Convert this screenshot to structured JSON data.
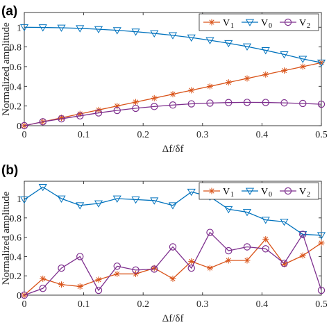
{
  "chart_data": [
    {
      "type": "line",
      "panel_label": "(a)",
      "xlabel": "Δf/δf",
      "ylabel": "Normalized amplitude",
      "xlim": [
        0,
        0.5
      ],
      "ylim": [
        0,
        1.15
      ],
      "xticks": [
        "0",
        "0.1",
        "0.2",
        "0.3",
        "0.4",
        "0.5"
      ],
      "yticks": [
        "0",
        "0.2",
        "0.4",
        "0.6",
        "0.8",
        "1"
      ],
      "grid": true,
      "legend_position": "top-right",
      "x": [
        0,
        0.03125,
        0.0625,
        0.09375,
        0.125,
        0.15625,
        0.1875,
        0.21875,
        0.25,
        0.28125,
        0.3125,
        0.34375,
        0.375,
        0.40625,
        0.4375,
        0.46875,
        0.5
      ],
      "series": [
        {
          "name": "V",
          "subscript": "1",
          "color": "#d95319",
          "marker": "asterisk",
          "values": [
            0,
            0.04,
            0.08,
            0.12,
            0.16,
            0.2,
            0.24,
            0.28,
            0.32,
            0.36,
            0.4,
            0.44,
            0.48,
            0.52,
            0.56,
            0.6,
            0.64
          ]
        },
        {
          "name": "V",
          "subscript": "0",
          "color": "#0072bd",
          "marker": "triangle-down",
          "values": [
            1,
            0.998,
            0.995,
            0.989,
            0.98,
            0.969,
            0.955,
            0.938,
            0.918,
            0.895,
            0.868,
            0.838,
            0.804,
            0.766,
            0.724,
            0.678,
            0.64
          ]
        },
        {
          "name": "V",
          "subscript": "2",
          "color": "#7e2f8e",
          "marker": "circle",
          "values": [
            0,
            0.04,
            0.07,
            0.1,
            0.13,
            0.155,
            0.177,
            0.195,
            0.21,
            0.222,
            0.23,
            0.235,
            0.237,
            0.236,
            0.232,
            0.226,
            0.218
          ]
        }
      ]
    },
    {
      "type": "line",
      "panel_label": "(b)",
      "xlabel": "Δf/δf",
      "ylabel": "Normalized amplitude",
      "xlim": [
        0,
        0.5
      ],
      "ylim": [
        0,
        1.18
      ],
      "xticks": [
        "0",
        "0.1",
        "0.2",
        "0.3",
        "0.4",
        "0.5"
      ],
      "yticks": [
        "0",
        "0.2",
        "0.4",
        "0.6",
        "0.8",
        "1"
      ],
      "grid": true,
      "legend_position": "top-right",
      "x": [
        0,
        0.03125,
        0.0625,
        0.09375,
        0.125,
        0.15625,
        0.1875,
        0.21875,
        0.25,
        0.28125,
        0.3125,
        0.34375,
        0.375,
        0.40625,
        0.4375,
        0.46875,
        0.5
      ],
      "series": [
        {
          "name": "V",
          "subscript": "1",
          "color": "#d95319",
          "marker": "asterisk",
          "values": [
            0,
            0.17,
            0.11,
            0.09,
            0.16,
            0.22,
            0.22,
            0.28,
            0.17,
            0.35,
            0.28,
            0.36,
            0.36,
            0.58,
            0.32,
            0.41,
            0.54
          ]
        },
        {
          "name": "V",
          "subscript": "0",
          "color": "#0072bd",
          "marker": "triangle-down",
          "values": [
            0.99,
            1.12,
            1.0,
            0.93,
            0.95,
            1.0,
            0.99,
            0.98,
            0.93,
            1.07,
            1.02,
            0.89,
            0.86,
            0.78,
            0.76,
            0.63,
            0.62
          ]
        },
        {
          "name": "V",
          "subscript": "2",
          "color": "#7e2f8e",
          "marker": "circle",
          "values": [
            0,
            0.07,
            0.28,
            0.4,
            0.05,
            0.3,
            0.26,
            0.27,
            0.5,
            0.28,
            0.65,
            0.46,
            0.5,
            0.48,
            0.33,
            0.63,
            0.05
          ]
        }
      ]
    }
  ]
}
